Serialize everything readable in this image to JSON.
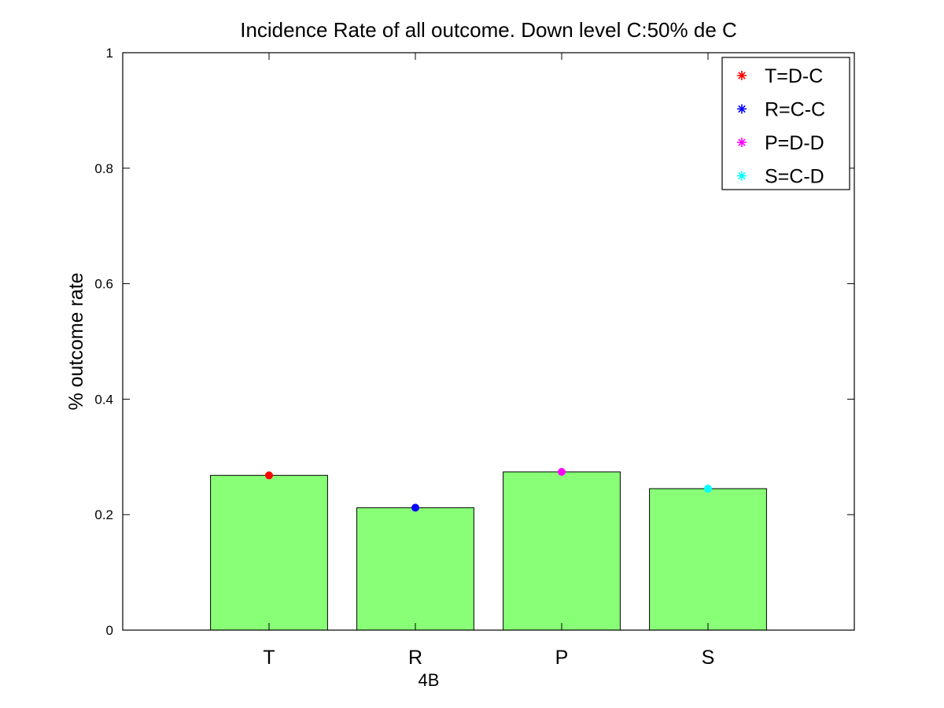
{
  "chart_data": {
    "type": "bar",
    "title": "Incidence Rate of all outcome. Down level C:50% de C",
    "xlabel": "4B",
    "ylabel": "% outcome rate",
    "categories": [
      "T",
      "R",
      "P",
      "S"
    ],
    "values": [
      0.268,
      0.212,
      0.274,
      0.245
    ],
    "markers": [
      {
        "label": "T=D-C",
        "value": 0.268,
        "color": "#ff0000"
      },
      {
        "label": "R=C-C",
        "value": 0.212,
        "color": "#0000ff"
      },
      {
        "label": "P=D-D",
        "value": 0.274,
        "color": "#ff00ff"
      },
      {
        "label": "S=C-D",
        "value": 0.245,
        "color": "#00ffff"
      }
    ],
    "bar_color": "#88ff77",
    "ylim": [
      0,
      1
    ],
    "yticks": [
      "0",
      "0.2",
      "0.4",
      "0.6",
      "0.8",
      "1"
    ],
    "grid": false,
    "legend_position": "top-right"
  }
}
